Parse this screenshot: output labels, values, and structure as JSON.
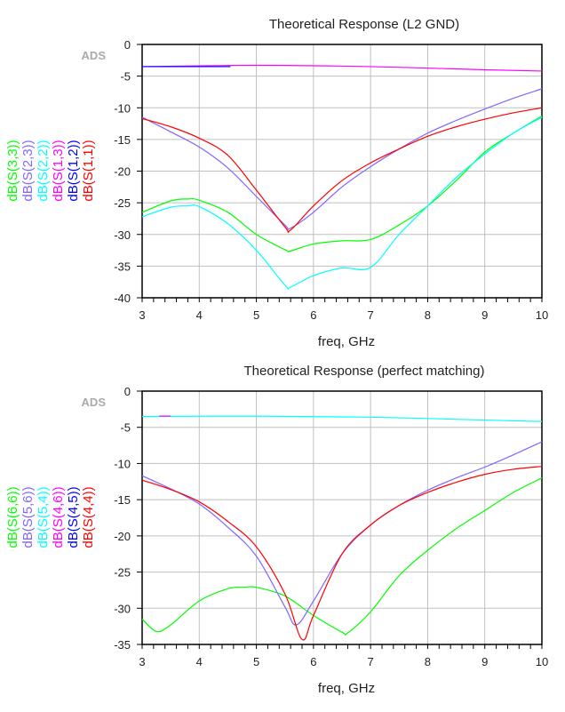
{
  "chart_data": [
    {
      "type": "line",
      "title": "Theoretical Response (L2 GND)",
      "xlabel": "freq, GHz",
      "watermark": "ADS",
      "xlim": [
        3,
        10
      ],
      "ylim": [
        -40,
        0
      ],
      "xticks": [
        3,
        4,
        5,
        6,
        7,
        8,
        9,
        10
      ],
      "yticks": [
        0,
        -5,
        -10,
        -15,
        -20,
        -25,
        -30,
        -35,
        -40
      ],
      "grid": true,
      "legend": "left-vertical",
      "series": [
        {
          "name": "dB(S(3,3))",
          "color": "#00ff00",
          "x": [
            3,
            3.5,
            3.8,
            4,
            4.5,
            5,
            5.5,
            5.6,
            6,
            6.5,
            7,
            7.5,
            8,
            8.5,
            9,
            9.5,
            10
          ],
          "y": [
            -26.5,
            -24.7,
            -24.4,
            -24.6,
            -26.5,
            -30,
            -32.4,
            -32.6,
            -31.5,
            -31,
            -30.8,
            -28.5,
            -25.5,
            -21.5,
            -17,
            -14,
            -11.3
          ]
        },
        {
          "name": "dB(S(2,3))",
          "color": "#8066ff",
          "x": [
            3,
            3.5,
            4,
            4.5,
            5,
            5.5,
            5.6,
            6,
            6.5,
            7,
            7.5,
            8,
            8.5,
            9,
            9.5,
            10
          ],
          "y": [
            -11.5,
            -13.8,
            -16.2,
            -19.5,
            -24,
            -28.5,
            -29,
            -26.5,
            -22.5,
            -19.3,
            -16.5,
            -14,
            -12,
            -10.2,
            -8.5,
            -7
          ]
        },
        {
          "name": "dB(S(2,2))",
          "color": "#00ffff",
          "x": [
            3,
            3.5,
            3.8,
            4,
            4.5,
            5,
            5.5,
            5.6,
            6,
            6.5,
            7,
            7.5,
            8,
            8.5,
            9,
            9.5,
            10
          ],
          "y": [
            -27.2,
            -25.7,
            -25.5,
            -25.6,
            -28.3,
            -32.5,
            -38,
            -38.3,
            -36.5,
            -35.3,
            -35.2,
            -30,
            -25.5,
            -21,
            -17.3,
            -14,
            -11.5
          ]
        },
        {
          "name": "dB(S(1,3))",
          "color": "#ff00ff",
          "x": [
            3,
            5,
            7,
            9,
            10
          ],
          "y": [
            -3.5,
            -3.3,
            -3.5,
            -4,
            -4.2
          ]
        },
        {
          "name": "dB(S(1,2))",
          "color": "#0000ff",
          "x": [
            3,
            4.4,
            4.5
          ],
          "y": [
            -3.5,
            -3.5,
            -3.5
          ]
        },
        {
          "name": "dB(S(1,1))",
          "color": "#ff0000",
          "x": [
            3,
            3.5,
            4,
            4.5,
            5,
            5.5,
            5.6,
            6,
            6.5,
            7,
            7.5,
            8,
            8.5,
            9,
            9.5,
            10
          ],
          "y": [
            -11.7,
            -13,
            -14.8,
            -17.5,
            -23,
            -28.8,
            -29.3,
            -25.5,
            -21.5,
            -18.7,
            -16.5,
            -14.5,
            -13,
            -11.8,
            -10.8,
            -10
          ]
        }
      ]
    },
    {
      "type": "line",
      "title": "Theoretical Response (perfect matching)",
      "xlabel": "freq, GHz",
      "watermark": "ADS",
      "xlim": [
        3,
        10
      ],
      "ylim": [
        -35,
        0
      ],
      "xticks": [
        3,
        4,
        5,
        6,
        7,
        8,
        9,
        10
      ],
      "yticks": [
        0,
        -5,
        -10,
        -15,
        -20,
        -25,
        -30,
        -35
      ],
      "grid": true,
      "legend": "left-vertical",
      "series": [
        {
          "name": "dB(S(6,6))",
          "color": "#00ff00",
          "x": [
            3,
            3.25,
            3.5,
            4,
            4.5,
            4.8,
            5,
            5.5,
            6,
            6.5,
            6.6,
            7,
            7.5,
            8,
            8.5,
            9,
            9.5,
            10
          ],
          "y": [
            -31.5,
            -33.2,
            -32.3,
            -29,
            -27.3,
            -27.1,
            -27.1,
            -28.3,
            -31,
            -33.3,
            -33.4,
            -30.5,
            -25.5,
            -22,
            -19,
            -16.5,
            -14,
            -12
          ]
        },
        {
          "name": "dB(S(5,6))",
          "color": "#8066ff",
          "x": [
            3,
            3.5,
            4,
            4.5,
            5,
            5.5,
            5.7,
            6,
            6.5,
            7,
            7.5,
            8,
            8.5,
            9,
            9.5,
            10
          ],
          "y": [
            -11.7,
            -13.5,
            -15.6,
            -18.8,
            -22.8,
            -29.8,
            -32.3,
            -29,
            -22.5,
            -18.5,
            -15.8,
            -13.7,
            -12,
            -10.5,
            -8.8,
            -7
          ]
        },
        {
          "name": "dB(S(5,4))",
          "color": "#00ffff",
          "x": [
            3,
            5,
            7,
            9,
            10
          ],
          "y": [
            -3.5,
            -3.45,
            -3.6,
            -4,
            -4.2
          ]
        },
        {
          "name": "dB(S(4,6))",
          "color": "#ff00ff",
          "x": [
            3.3,
            3.5
          ],
          "y": [
            -3.45,
            -3.45
          ]
        },
        {
          "name": "dB(S(4,5))",
          "color": "#0000ff",
          "x": [],
          "y": []
        },
        {
          "name": "dB(S(4,4))",
          "color": "#ff0000",
          "x": [
            3,
            3.5,
            4,
            4.5,
            5,
            5.5,
            5.8,
            6,
            6.5,
            7,
            7.5,
            8,
            8.5,
            9,
            9.5,
            10
          ],
          "y": [
            -12.3,
            -13.6,
            -15.3,
            -18,
            -21.5,
            -28,
            -34.3,
            -31,
            -22.5,
            -18.5,
            -15.8,
            -14,
            -12.6,
            -11.5,
            -10.8,
            -10.4
          ]
        }
      ]
    }
  ]
}
